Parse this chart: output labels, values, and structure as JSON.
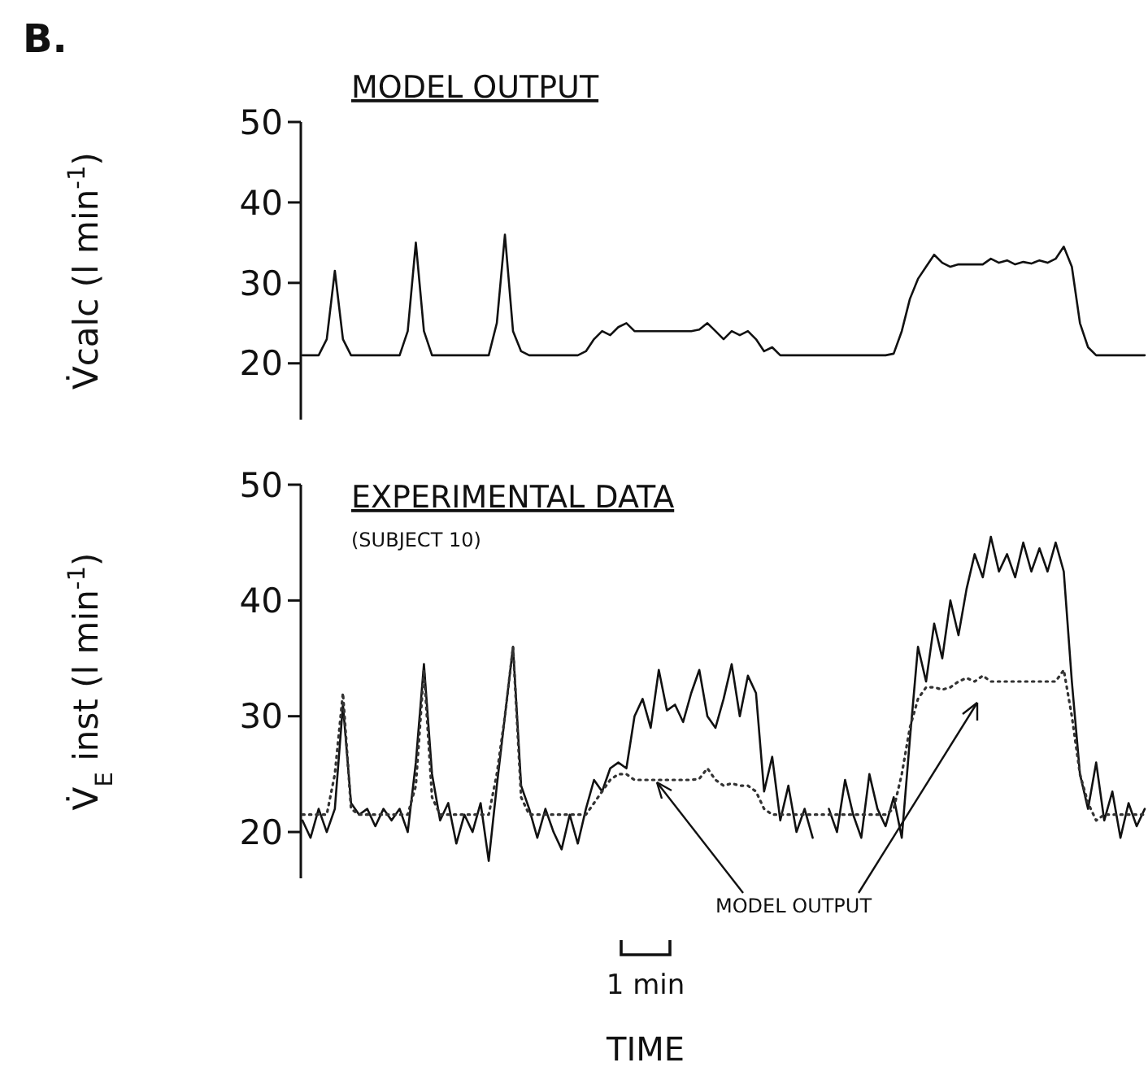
{
  "chart_data": [
    {
      "type": "line",
      "title": "MODEL OUTPUT",
      "ylabel": "V̇calc (l min$^{-1}$)",
      "annotations": [
        "B."
      ],
      "tick_labels": "y",
      "ylim": [
        13,
        50
      ],
      "yticks": [
        20,
        30,
        40,
        50
      ],
      "categories": [
        null,
        null,
        null,
        null,
        null,
        null,
        null,
        null,
        null,
        null,
        null,
        null,
        null,
        null,
        null,
        null,
        null,
        null,
        null,
        null,
        null,
        null,
        null,
        null,
        null,
        null,
        null,
        null,
        null,
        null,
        null,
        null,
        null,
        null,
        null,
        null,
        null,
        null,
        null,
        null,
        null,
        null,
        null,
        null,
        null,
        null,
        null,
        null,
        null,
        null,
        null,
        null,
        null,
        null,
        null,
        null,
        null,
        null,
        null,
        null,
        null,
        null,
        null,
        null,
        null,
        null,
        null,
        null,
        null,
        null,
        null,
        null,
        null,
        null,
        null,
        null,
        null,
        null,
        null,
        null,
        null,
        null,
        null,
        null,
        null,
        null,
        null,
        null,
        null,
        null,
        null,
        null,
        null,
        null,
        null,
        null,
        null,
        null,
        null,
        null,
        null,
        null,
        null,
        null,
        null
      ],
      "series": [
        {
          "color": "#111111",
          "values": [
            21,
            21,
            21,
            23,
            31.5,
            23,
            21,
            21,
            21,
            21,
            21,
            21,
            21,
            24,
            35,
            24,
            21,
            21,
            21,
            21,
            21,
            21,
            21,
            21,
            25,
            36,
            24,
            21.5,
            21,
            21,
            21,
            21,
            21,
            21,
            21,
            21.5,
            23,
            24,
            23.5,
            24.5,
            25,
            24,
            24,
            24,
            24,
            24,
            24,
            24,
            24,
            24.2,
            25,
            24,
            23,
            24,
            23.5,
            24,
            23,
            21.5,
            22,
            21,
            21,
            21,
            21,
            21,
            21,
            21,
            21,
            21,
            21,
            21,
            21,
            21,
            21,
            21.2,
            24,
            28,
            30.5,
            32,
            33.5,
            32.5,
            32,
            32.3,
            32.3,
            32.3,
            32.3,
            33,
            32.5,
            32.8,
            32.3,
            32.6,
            32.4,
            32.8,
            32.5,
            33,
            34.5,
            32,
            25,
            22,
            21,
            21,
            21,
            21,
            21,
            21,
            21
          ]
        }
      ]
    },
    {
      "type": "line",
      "title": "EXPERIMENTAL DATA",
      "subtitle": "(SUBJECT 10)",
      "ylabel": "V̇$_{E}$ inst (l min$^{-1}$)",
      "xlabel": "TIME",
      "annotations": [
        "MODEL OUTPUT",
        "1 min"
      ],
      "tick_labels": "y",
      "ylim": [
        16,
        50
      ],
      "yticks": [
        20,
        30,
        40,
        50
      ],
      "categories": [
        null,
        null,
        null,
        null,
        null,
        null,
        null,
        null,
        null,
        null,
        null,
        null,
        null,
        null,
        null,
        null,
        null,
        null,
        null,
        null,
        null,
        null,
        null,
        null,
        null,
        null,
        null,
        null,
        null,
        null,
        null,
        null,
        null,
        null,
        null,
        null,
        null,
        null,
        null,
        null,
        null,
        null,
        null,
        null,
        null,
        null,
        null,
        null,
        null,
        null,
        null,
        null,
        null,
        null,
        null,
        null,
        null,
        null,
        null,
        null,
        null,
        null,
        null,
        null,
        null,
        null,
        null,
        null,
        null,
        null,
        null,
        null,
        null,
        null,
        null,
        null,
        null,
        null,
        null,
        null,
        null,
        null,
        null,
        null,
        null,
        null,
        null,
        null,
        null,
        null,
        null,
        null,
        null,
        null,
        null,
        null,
        null,
        null,
        null,
        null,
        null,
        null,
        null,
        null,
        null
      ],
      "series": [
        {
          "color": "#111111",
          "line_style": "solid",
          "values": [
            21,
            19.5,
            22,
            20,
            22,
            31,
            22.5,
            21.5,
            22,
            20.5,
            22,
            21,
            22,
            20,
            26,
            34.5,
            25,
            21,
            22.5,
            19,
            21.5,
            20,
            22.5,
            17.5,
            24,
            30,
            36,
            24,
            22,
            19.5,
            22,
            20,
            18.5,
            21.5,
            19,
            22,
            24.5,
            23.5,
            25.5,
            26,
            25.5,
            30,
            31.5,
            29,
            34,
            30.5,
            31,
            29.5,
            32,
            34,
            30,
            29,
            31.5,
            34.5,
            30,
            33.5,
            32,
            23.5,
            26.5,
            21,
            24,
            20,
            22,
            19.5,
            null,
            22,
            20,
            24.5,
            21.5,
            19.5,
            25,
            22,
            20.5,
            23,
            19.5,
            28,
            36,
            33,
            38,
            35,
            40,
            37,
            41,
            44,
            42,
            45.5,
            42.5,
            44,
            42,
            45,
            42.5,
            44.5,
            42.5,
            45,
            42.5,
            33,
            25,
            22,
            26,
            21,
            23.5,
            19.5,
            22.5,
            20.5,
            22
          ]
        },
        {
          "color": "#333333",
          "line_style": "dotted",
          "values": [
            21.5,
            21.5,
            21.5,
            21.5,
            25,
            32,
            22,
            21.5,
            21.5,
            21.5,
            21.5,
            21.5,
            21.5,
            21.5,
            24,
            34,
            23,
            21.5,
            21.5,
            21.5,
            21.5,
            21.5,
            21.5,
            21.5,
            25,
            30,
            36,
            23,
            21.5,
            21.5,
            21.5,
            21.5,
            21.5,
            21.5,
            21.5,
            21.5,
            22.5,
            23.5,
            24.5,
            25,
            25,
            24.5,
            24.5,
            24.5,
            24.5,
            24.5,
            24.5,
            24.5,
            24.5,
            24.6,
            25.5,
            24.5,
            24,
            24.2,
            24,
            24,
            23.5,
            22,
            21.5,
            21.5,
            21.5,
            21.5,
            21.5,
            21.5,
            21.5,
            21.5,
            21.5,
            21.5,
            21.5,
            21.5,
            21.5,
            21.5,
            21.5,
            22,
            25,
            29,
            31.5,
            32.5,
            32.5,
            32.3,
            32.5,
            33,
            33.3,
            33,
            33.5,
            33,
            33,
            33,
            33,
            33,
            33,
            33,
            33,
            33,
            34,
            30,
            25,
            22.5,
            21,
            21.5,
            21.5,
            21.5,
            21.5,
            21.5,
            21.5
          ]
        }
      ]
    }
  ]
}
